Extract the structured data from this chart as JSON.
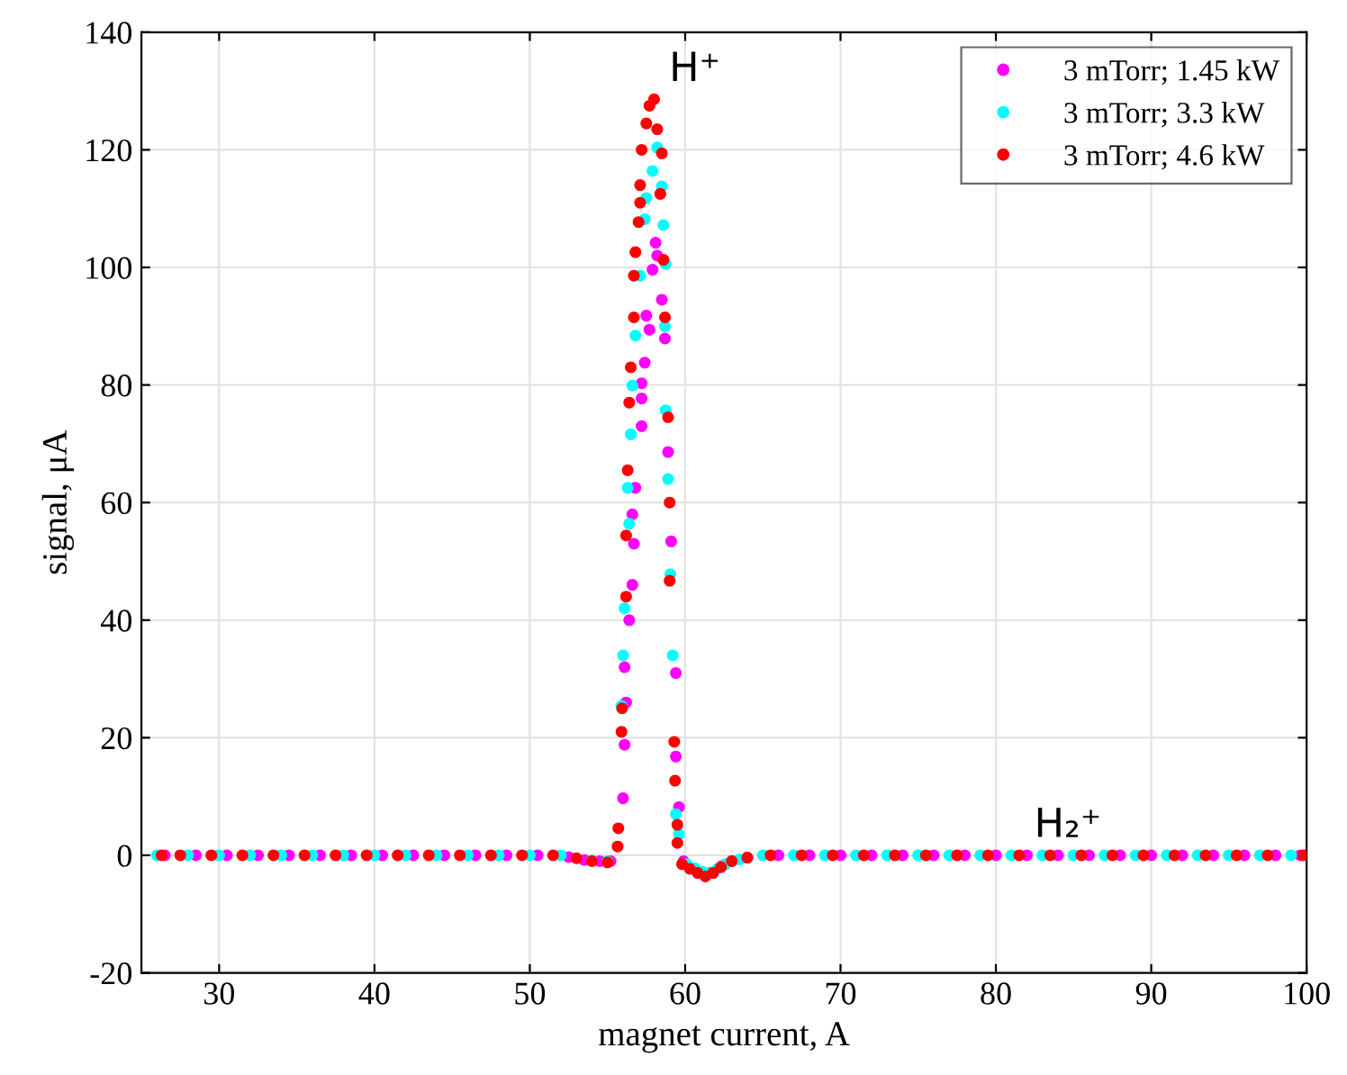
{
  "chart_data": {
    "type": "scatter",
    "xlabel": "magnet current, A",
    "ylabel": "signal, μA",
    "xlim": [
      25,
      100
    ],
    "ylim": [
      -20,
      140
    ],
    "xticks": [
      30,
      40,
      50,
      60,
      70,
      80,
      90,
      100
    ],
    "yticks": [
      -20,
      0,
      20,
      40,
      60,
      80,
      100,
      120,
      140
    ],
    "grid": true,
    "legend": "top right",
    "marker": "circle",
    "annotations": [
      {
        "text": "H⁺",
        "x": 58.0,
        "y": 128.6
      },
      {
        "text": "H₂⁺",
        "x": 81.5,
        "y": 0
      }
    ],
    "series": [
      {
        "name": "3 mTorr; 1.45 kW",
        "color": "#ff00ff",
        "x": [
          26.5,
          28.5,
          30.5,
          32.5,
          34.5,
          36.5,
          38.5,
          40.5,
          42.5,
          44.5,
          46.5,
          48.5,
          50.5,
          52.5,
          53.5,
          54.5,
          55.2,
          56.0,
          56.1,
          56.2,
          56.1,
          56.4,
          56.6,
          56.7,
          56.6,
          56.8,
          57.2,
          57.2,
          57.2,
          57.4,
          57.7,
          57.5,
          57.9,
          58.2,
          58.1,
          58.5,
          58.7,
          58.9,
          59.1,
          59.4,
          59.4,
          59.6,
          59.9,
          62.4,
          63,
          64,
          66,
          68,
          70,
          72,
          74,
          76,
          78,
          80,
          82,
          84,
          86,
          88,
          90,
          92,
          94,
          96,
          98,
          99.6
        ],
        "values": [
          0,
          0,
          0,
          0,
          0,
          0,
          0,
          0,
          0,
          0,
          0,
          0,
          0,
          -0.3,
          -0.8,
          -1,
          -1,
          9.7,
          18.8,
          26,
          32,
          40,
          46,
          53,
          58,
          62.5,
          73,
          77.7,
          80.3,
          83.8,
          89.4,
          91.8,
          99.6,
          102,
          104.2,
          94.5,
          87.9,
          68.6,
          53.4,
          31,
          16.8,
          8.2,
          -1,
          -1.8,
          -1,
          -0.4,
          0,
          0,
          0,
          0,
          0,
          0,
          0,
          0,
          0,
          0,
          0,
          0,
          0,
          0,
          0,
          0,
          0,
          0
        ]
      },
      {
        "name": "3 mTorr; 3.3 kW",
        "color": "#00ffff",
        "x": [
          26.0,
          28.0,
          30.0,
          32.0,
          34.0,
          36.0,
          38.0,
          40.0,
          42.0,
          44.0,
          46.0,
          48.0,
          50.0,
          52.0,
          53.0,
          54.0,
          55.0,
          55.9,
          56.0,
          56.1,
          56.4,
          56.3,
          56.5,
          56.6,
          56.8,
          57.1,
          57.4,
          57.5,
          57.9,
          58.2,
          58.5,
          58.6,
          58.75,
          58.7,
          58.75,
          58.9,
          59.05,
          59.2,
          59.4,
          59.6,
          60.1,
          60.6,
          61.1,
          61.6,
          62.1,
          62.6,
          63.5,
          65,
          67,
          69,
          71,
          73,
          75,
          77,
          79,
          81,
          83,
          85,
          87,
          89,
          91,
          93,
          95,
          97,
          99
        ],
        "values": [
          0,
          0,
          0,
          0,
          0,
          0,
          0,
          0,
          0,
          0,
          0,
          0,
          0,
          0,
          null,
          -0.9,
          -1,
          25.4,
          34,
          42,
          56.4,
          62.5,
          71.6,
          79.9,
          88.4,
          98.6,
          108.2,
          111.8,
          116.4,
          120.4,
          113.8,
          107.2,
          100.6,
          90,
          75.7,
          64,
          47.8,
          34,
          7,
          3.6,
          -1.5,
          -2.2,
          -2.8,
          -2.9,
          -2.3,
          -1.5,
          -0.7,
          0,
          0,
          0,
          0,
          0,
          0,
          0,
          0,
          0,
          0,
          0,
          0,
          0,
          0,
          0,
          0,
          0,
          0
        ]
      },
      {
        "name": "3 mTorr; 4.6 kW",
        "color": "#ff0000",
        "x": [
          26.3,
          27.5,
          29.5,
          31.5,
          33.5,
          35.5,
          37.5,
          39.5,
          41.5,
          43.5,
          45.5,
          47.5,
          49.5,
          51.5,
          53.0,
          54.0,
          55.0,
          55.65,
          55.7,
          55.9,
          55.94,
          56.2,
          56.2,
          56.3,
          56.4,
          56.5,
          56.7,
          56.7,
          56.8,
          57.0,
          57.1,
          57.1,
          57.2,
          57.5,
          57.7,
          58.0,
          58.2,
          58.5,
          58.4,
          58.6,
          58.7,
          58.9,
          59.0,
          59.0,
          59.3,
          59.35,
          59.5,
          59.5,
          59.8,
          60.3,
          60.8,
          61.3,
          61.8,
          62.3,
          63,
          64,
          65.5,
          67.5,
          69.5,
          71.5,
          73.5,
          75.5,
          77.5,
          79.5,
          81.5,
          83.5,
          85.5,
          87.5,
          89.5,
          91.5,
          93.5,
          95.5,
          97.5,
          99.8
        ],
        "values": [
          0,
          0,
          0,
          0,
          0,
          0,
          0,
          0,
          0,
          0,
          0,
          0,
          0,
          0,
          -0.5,
          -1,
          -1.2,
          1.5,
          4.6,
          21,
          25,
          44,
          54.4,
          65.5,
          77,
          83,
          91.5,
          98.6,
          102.6,
          107.7,
          111,
          114,
          120,
          124.5,
          127.5,
          128.6,
          123.5,
          119.4,
          112.5,
          101.3,
          91.5,
          74.5,
          60,
          46.7,
          19.3,
          12.7,
          5.2,
          2.1,
          -1.5,
          -2.3,
          -3,
          -3.6,
          -3,
          -2,
          -1,
          -0.4,
          0,
          0,
          0,
          0,
          0,
          0,
          0,
          0,
          0,
          0,
          0,
          0,
          0,
          0,
          0,
          0,
          0,
          0
        ]
      }
    ]
  }
}
